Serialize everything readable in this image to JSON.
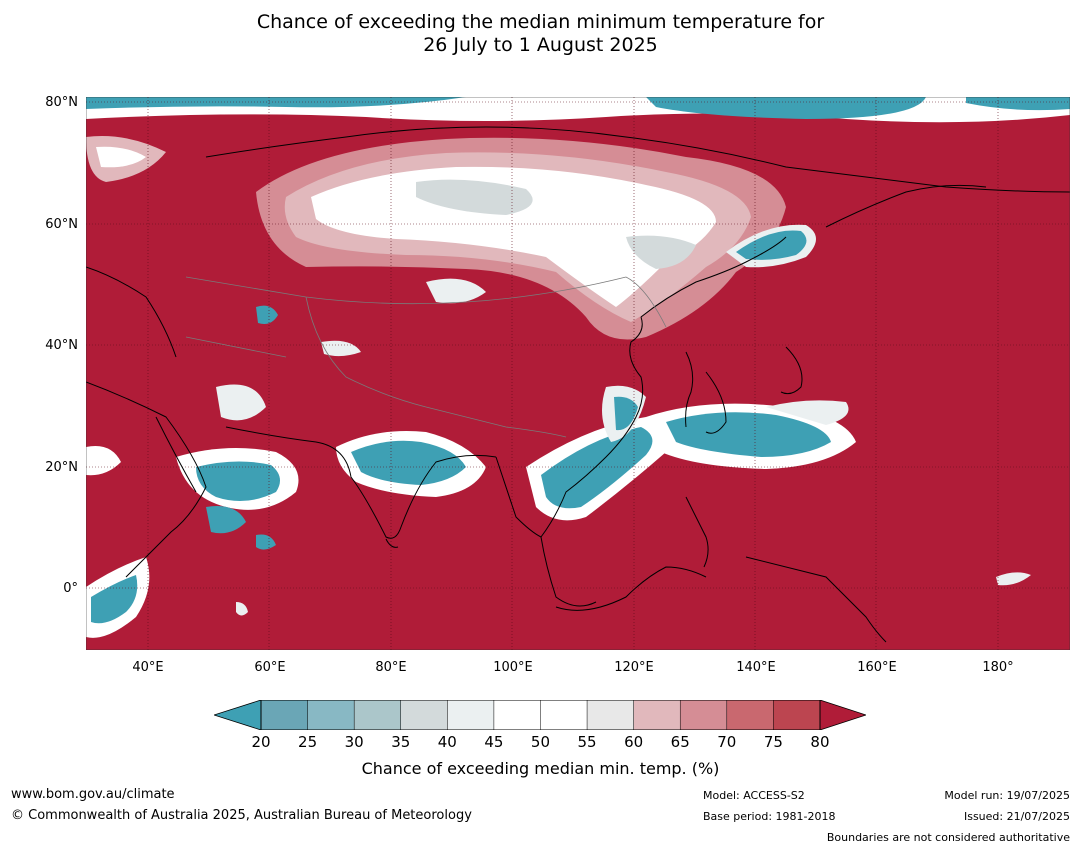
{
  "title": {
    "line1": "Chance of exceeding the median minimum temperature for",
    "line2": "26 July to 1 August 2025"
  },
  "axes": {
    "lat_labels": [
      "80°N",
      "60°N",
      "40°N",
      "20°N",
      "0°"
    ],
    "lon_labels": [
      "40°E",
      "60°E",
      "80°E",
      "100°E",
      "120°E",
      "140°E",
      "160°E",
      "180°"
    ],
    "lon_range": [
      30,
      192
    ],
    "lat_range": [
      -10,
      81
    ]
  },
  "colorbar": {
    "ticks": [
      "20",
      "25",
      "30",
      "35",
      "40",
      "45",
      "50",
      "55",
      "60",
      "65",
      "70",
      "75",
      "80"
    ],
    "label": "Chance of exceeding median min. temp. (%)",
    "colors": [
      "#3ea0b4",
      "#6aa6b6",
      "#88b8c4",
      "#abc6ca",
      "#d3dadb",
      "#ebf0f1",
      "#ffffff",
      "#ffffff",
      "#e8e8e8",
      "#e1b8bc",
      "#d58d95",
      "#c9686f",
      "#bc4550",
      "#b01c38"
    ]
  },
  "colors": {
    "high": "#b01c38",
    "low": "#3ea0b4"
  },
  "footer": {
    "url": "www.bom.gov.au/climate",
    "copyright": "© Commonwealth of Australia 2025, Australian Bureau of Meteorology",
    "model": "Model: ACCESS-S2",
    "base_period": "Base period: 1981-2018",
    "model_run": "Model run: 19/07/2025",
    "issued": "Issued: 21/07/2025",
    "disclaimer": "Boundaries are not considered authoritative"
  }
}
